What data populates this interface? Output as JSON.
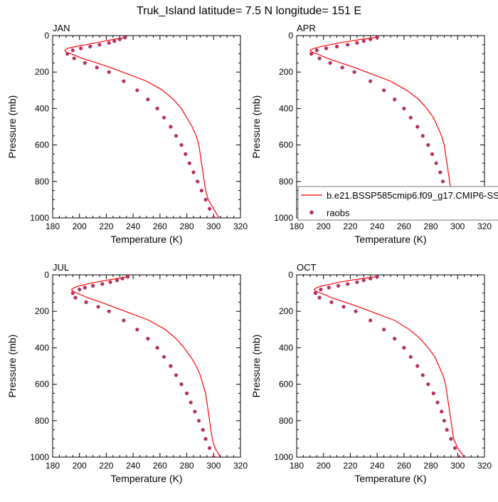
{
  "title": "Truk_Island  latitude= 7.5 N longitude= 151 E",
  "axes": {
    "xlabel": "Temperature (K)",
    "ylabel": "Pressure (mb)",
    "xlim": [
      180,
      320
    ],
    "ylim": [
      0,
      1000
    ],
    "y_inverted": true,
    "x_major_ticks": [
      180,
      200,
      220,
      240,
      260,
      280,
      300,
      320
    ],
    "y_major_ticks": [
      0,
      200,
      400,
      600,
      800,
      1000
    ]
  },
  "legend": {
    "placement": "inside APR panel, lower area, extending past right edge",
    "model_label": "b.e21.BSSP585cmip6.f09_g17.CMIP6-SS",
    "obs_label": "raobs"
  },
  "colors": {
    "model_line": "#ff0000",
    "obs_marker": "#b5305e"
  },
  "chart_data": [
    {
      "type": "line",
      "panel": "JAN",
      "series": [
        {
          "name": "b.e21.BSSP585cmip6.f09_g17.CMIP6-SS",
          "kind": "line",
          "points": [
            [
              234,
              10
            ],
            [
              226,
              20
            ],
            [
              219,
              30
            ],
            [
              212,
              40
            ],
            [
              205,
              50
            ],
            [
              197,
              60
            ],
            [
              191,
              70
            ],
            [
              189,
              80
            ],
            [
              190,
              90
            ],
            [
              194,
              100
            ],
            [
              202,
              125
            ],
            [
              213,
              150
            ],
            [
              223,
              175
            ],
            [
              232,
              200
            ],
            [
              250,
              250
            ],
            [
              262,
              300
            ],
            [
              270,
              350
            ],
            [
              276,
              400
            ],
            [
              280,
              450
            ],
            [
              284,
              500
            ],
            [
              287,
              550
            ],
            [
              289,
              600
            ],
            [
              290,
              650
            ],
            [
              291,
              700
            ],
            [
              292,
              750
            ],
            [
              293,
              800
            ],
            [
              294,
              850
            ],
            [
              296,
              900
            ],
            [
              300,
              950
            ],
            [
              304,
              1000
            ]
          ]
        },
        {
          "name": "raobs",
          "kind": "scatter",
          "points": [
            [
              234,
              10
            ],
            [
              230,
              20
            ],
            [
              226,
              30
            ],
            [
              222,
              40
            ],
            [
              215,
              50
            ],
            [
              208,
              60
            ],
            [
              201,
              70
            ],
            [
              195,
              80
            ],
            [
              191,
              100
            ],
            [
              196,
              125
            ],
            [
              204,
              150
            ],
            [
              213,
              175
            ],
            [
              222,
              200
            ],
            [
              233,
              250
            ],
            [
              243,
              300
            ],
            [
              251,
              350
            ],
            [
              258,
              400
            ],
            [
              263,
              450
            ],
            [
              268,
              500
            ],
            [
              272,
              550
            ],
            [
              276,
              600
            ],
            [
              279,
              650
            ],
            [
              282,
              700
            ],
            [
              285,
              750
            ],
            [
              288,
              800
            ],
            [
              291,
              850
            ],
            [
              294,
              900
            ],
            [
              297,
              950
            ],
            [
              300,
              1000
            ]
          ]
        }
      ]
    },
    {
      "type": "line",
      "panel": "APR",
      "series": [
        {
          "name": "b.e21.BSSP585cmip6.f09_g17.CMIP6-SS",
          "kind": "line",
          "points": [
            [
              239,
              10
            ],
            [
              229,
              20
            ],
            [
              220,
              30
            ],
            [
              212,
              40
            ],
            [
              205,
              50
            ],
            [
              198,
              60
            ],
            [
              193,
              70
            ],
            [
              190,
              80
            ],
            [
              191,
              90
            ],
            [
              195,
              100
            ],
            [
              203,
              125
            ],
            [
              213,
              150
            ],
            [
              223,
              175
            ],
            [
              232,
              200
            ],
            [
              250,
              250
            ],
            [
              262,
              300
            ],
            [
              271,
              350
            ],
            [
              277,
              400
            ],
            [
              282,
              450
            ],
            [
              285,
              500
            ],
            [
              288,
              550
            ],
            [
              290,
              600
            ],
            [
              291,
              650
            ],
            [
              292,
              700
            ],
            [
              293,
              750
            ],
            [
              294,
              800
            ],
            [
              295,
              850
            ],
            [
              297,
              900
            ],
            [
              300,
              950
            ],
            [
              304,
              1000
            ]
          ]
        },
        {
          "name": "raobs",
          "kind": "scatter",
          "points": [
            [
              240,
              10
            ],
            [
              235,
              20
            ],
            [
              230,
              30
            ],
            [
              225,
              40
            ],
            [
              218,
              50
            ],
            [
              210,
              60
            ],
            [
              202,
              70
            ],
            [
              195,
              80
            ],
            [
              191,
              100
            ],
            [
              197,
              125
            ],
            [
              205,
              150
            ],
            [
              214,
              175
            ],
            [
              223,
              200
            ],
            [
              235,
              250
            ],
            [
              245,
              300
            ],
            [
              253,
              350
            ],
            [
              260,
              400
            ],
            [
              265,
              450
            ],
            [
              270,
              500
            ],
            [
              274,
              550
            ],
            [
              278,
              600
            ],
            [
              281,
              650
            ],
            [
              284,
              700
            ],
            [
              287,
              750
            ],
            [
              289,
              800
            ],
            [
              292,
              850
            ],
            [
              295,
              900
            ],
            [
              298,
              950
            ],
            [
              303,
              1000
            ]
          ]
        }
      ]
    },
    {
      "type": "line",
      "panel": "JUL",
      "series": [
        {
          "name": "b.e21.BSSP585cmip6.f09_g17.CMIP6-SS",
          "kind": "line",
          "points": [
            [
              236,
              10
            ],
            [
              228,
              20
            ],
            [
              220,
              30
            ],
            [
              213,
              40
            ],
            [
              206,
              50
            ],
            [
              200,
              60
            ],
            [
              196,
              70
            ],
            [
              194,
              80
            ],
            [
              195,
              90
            ],
            [
              198,
              100
            ],
            [
              206,
              125
            ],
            [
              216,
              150
            ],
            [
              225,
              175
            ],
            [
              234,
              200
            ],
            [
              252,
              250
            ],
            [
              264,
              300
            ],
            [
              272,
              350
            ],
            [
              278,
              400
            ],
            [
              283,
              450
            ],
            [
              287,
              500
            ],
            [
              290,
              550
            ],
            [
              292,
              600
            ],
            [
              294,
              650
            ],
            [
              295,
              700
            ],
            [
              296,
              750
            ],
            [
              297,
              800
            ],
            [
              298,
              850
            ],
            [
              299,
              900
            ],
            [
              301,
              950
            ],
            [
              305,
              1000
            ]
          ]
        },
        {
          "name": "raobs",
          "kind": "scatter",
          "points": [
            [
              236,
              10
            ],
            [
              232,
              20
            ],
            [
              228,
              30
            ],
            [
              223,
              40
            ],
            [
              217,
              50
            ],
            [
              210,
              60
            ],
            [
              204,
              70
            ],
            [
              200,
              80
            ],
            [
              195,
              100
            ],
            [
              197,
              125
            ],
            [
              205,
              150
            ],
            [
              214,
              175
            ],
            [
              222,
              200
            ],
            [
              233,
              250
            ],
            [
              243,
              300
            ],
            [
              251,
              350
            ],
            [
              258,
              400
            ],
            [
              263,
              450
            ],
            [
              268,
              500
            ],
            [
              272,
              550
            ],
            [
              276,
              600
            ],
            [
              280,
              650
            ],
            [
              283,
              700
            ],
            [
              286,
              750
            ],
            [
              289,
              800
            ],
            [
              292,
              850
            ],
            [
              294,
              900
            ],
            [
              297,
              950
            ],
            [
              300,
              1000
            ]
          ]
        }
      ]
    },
    {
      "type": "line",
      "panel": "OCT",
      "series": [
        {
          "name": "b.e21.BSSP585cmip6.f09_g17.CMIP6-SS",
          "kind": "line",
          "points": [
            [
              239,
              10
            ],
            [
              229,
              20
            ],
            [
              220,
              30
            ],
            [
              212,
              40
            ],
            [
              206,
              50
            ],
            [
              199,
              60
            ],
            [
              195,
              70
            ],
            [
              193,
              80
            ],
            [
              194,
              90
            ],
            [
              198,
              100
            ],
            [
              206,
              125
            ],
            [
              216,
              150
            ],
            [
              226,
              175
            ],
            [
              235,
              200
            ],
            [
              253,
              250
            ],
            [
              264,
              300
            ],
            [
              272,
              350
            ],
            [
              278,
              400
            ],
            [
              283,
              450
            ],
            [
              286,
              500
            ],
            [
              289,
              550
            ],
            [
              291,
              600
            ],
            [
              292,
              650
            ],
            [
              293,
              700
            ],
            [
              294,
              750
            ],
            [
              295,
              800
            ],
            [
              296,
              850
            ],
            [
              297,
              900
            ],
            [
              300,
              950
            ],
            [
              305,
              1000
            ]
          ]
        },
        {
          "name": "raobs",
          "kind": "scatter",
          "points": [
            [
              240,
              10
            ],
            [
              235,
              20
            ],
            [
              230,
              30
            ],
            [
              225,
              40
            ],
            [
              218,
              50
            ],
            [
              211,
              60
            ],
            [
              204,
              70
            ],
            [
              198,
              80
            ],
            [
              194,
              100
            ],
            [
              197,
              125
            ],
            [
              206,
              150
            ],
            [
              215,
              175
            ],
            [
              224,
              200
            ],
            [
              235,
              250
            ],
            [
              245,
              300
            ],
            [
              253,
              350
            ],
            [
              260,
              400
            ],
            [
              265,
              450
            ],
            [
              270,
              500
            ],
            [
              274,
              550
            ],
            [
              278,
              600
            ],
            [
              282,
              650
            ],
            [
              285,
              700
            ],
            [
              288,
              750
            ],
            [
              290,
              800
            ],
            [
              292,
              850
            ],
            [
              295,
              900
            ],
            [
              298,
              950
            ],
            [
              301,
              1000
            ]
          ]
        }
      ]
    }
  ]
}
